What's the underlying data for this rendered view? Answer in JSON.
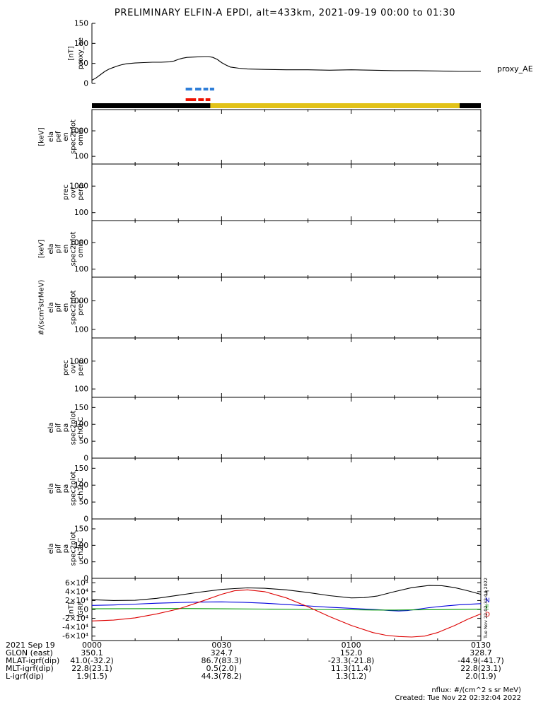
{
  "title": "PRELIMINARY ELFIN-A EPDI, alt=433km, 2021-09-19 00:00 to 01:30",
  "colors": {
    "frame": "#000000",
    "line_black": "#000000",
    "line_blue": "#0000dd",
    "line_green": "#009900",
    "line_red": "#dd0000",
    "orbit_black": "#000000",
    "orbit_yellow": "#e2c218",
    "dash_blue": "#2f7ed8",
    "dash_red": "#ee1100"
  },
  "xaxis": {
    "tick_minutes": [
      0,
      30,
      60,
      90
    ],
    "minor_every_min": 10
  },
  "chart_data": [
    {
      "id": "proxy_ae",
      "type": "line",
      "scale": "linear",
      "ylabel_lines": [
        "proxy_ae"
      ],
      "yunits": "[nT]",
      "right_label": "proxy_AE",
      "ylim": [
        0,
        150
      ],
      "yticks": [
        0,
        50,
        100,
        150
      ],
      "series": [
        {
          "name": "proxy_AE",
          "color_key": "line_black",
          "x": [
            0,
            1,
            2,
            3,
            4,
            5,
            6,
            7,
            8,
            10,
            12,
            14,
            16,
            18,
            19,
            20,
            21,
            22,
            24,
            26,
            27,
            28,
            29,
            30,
            31,
            32,
            34,
            36,
            40,
            45,
            50,
            55,
            60,
            65,
            70,
            75,
            80,
            85,
            90
          ],
          "y": [
            8,
            14,
            22,
            30,
            36,
            40,
            44,
            47,
            49,
            51,
            52,
            53,
            53,
            54,
            56,
            60,
            63,
            65,
            66,
            67,
            67,
            65,
            60,
            52,
            46,
            41,
            38,
            36,
            35,
            34,
            34,
            33,
            34,
            33,
            32,
            32,
            31,
            30,
            30
          ]
        }
      ]
    },
    {
      "id": "ela_pef_en_spec2plot_omni",
      "type": "spectrogram",
      "scale": "log",
      "ylabel_lines": [
        "ela",
        "pef",
        "en",
        "spec2plot",
        "omni"
      ],
      "yunits": "[keV]",
      "ylim": [
        50,
        6800
      ],
      "yticks": [
        100,
        1000
      ],
      "series": []
    },
    {
      "id": "pef_prec_ovr_perp",
      "type": "spectrogram",
      "scale": "log",
      "ylabel_lines": [
        "prec",
        "ovr",
        "perp"
      ],
      "yunits": "",
      "ylim": [
        50,
        6800
      ],
      "yticks": [
        100,
        1000
      ],
      "series": []
    },
    {
      "id": "ela_pif_en_spec2plot_omni",
      "type": "spectrogram",
      "scale": "log",
      "ylabel_lines": [
        "ela",
        "pif",
        "en",
        "spec2plot",
        "omni"
      ],
      "yunits": "[keV]",
      "ylim": [
        50,
        6800
      ],
      "yticks": [
        100,
        1000
      ],
      "series": []
    },
    {
      "id": "ela_pif_en_spec2plot_prec",
      "type": "spectrogram",
      "scale": "log",
      "ylabel_lines": [
        "ela",
        "pif",
        "en",
        "spec2plot",
        "prec"
      ],
      "yunits": "#/(scm²strMeV)",
      "ylim": [
        50,
        6800
      ],
      "yticks": [
        100,
        1000
      ],
      "series": []
    },
    {
      "id": "pif_prec_ovr_perp",
      "type": "spectrogram",
      "scale": "log",
      "ylabel_lines": [
        "prec",
        "ovr",
        "perp"
      ],
      "yunits": "",
      "ylim": [
        50,
        6800
      ],
      "yticks": [
        100,
        1000
      ],
      "series": []
    },
    {
      "id": "ela_pif_pa_spec2plot_ch0LC",
      "type": "line",
      "scale": "linear",
      "ylabel_lines": [
        "ela",
        "pif",
        "pa",
        "spec2plot",
        "ch0LC"
      ],
      "yunits": "",
      "ylim": [
        0,
        180
      ],
      "yticks": [
        0,
        50,
        100,
        150
      ],
      "series": []
    },
    {
      "id": "ela_pif_pa_spec2plot_ch1LC",
      "type": "line",
      "scale": "linear",
      "ylabel_lines": [
        "ela",
        "pif",
        "pa",
        "spec2plot",
        "ch1LC"
      ],
      "yunits": "",
      "ylim": [
        0,
        180
      ],
      "yticks": [
        0,
        50,
        100,
        150
      ],
      "series": []
    },
    {
      "id": "ela_pif_pa_spec2plot_ch2LC",
      "type": "line",
      "scale": "linear",
      "ylabel_lines": [
        "ela",
        "pif",
        "pa",
        "spec2plot",
        "ch2LC"
      ],
      "yunits": "",
      "ylim": [
        0,
        180
      ],
      "yticks": [
        0,
        50,
        100,
        150
      ],
      "series": []
    },
    {
      "id": "igrf",
      "type": "line",
      "scale": "linear",
      "ylabel_lines": [
        "IGRF"
      ],
      "yunits": "[nT]",
      "ylim": [
        -70000,
        70000
      ],
      "yticks": [
        -60000,
        -40000,
        -20000,
        0,
        20000,
        40000,
        60000
      ],
      "ytick_labels": [
        "-6×10⁴",
        "-4×10⁴",
        "-2×10⁴",
        "0",
        "2×10⁴",
        "4×10⁴",
        "6×10⁴"
      ],
      "right_letters": [
        {
          "label": "T",
          "color_key": "line_black"
        },
        {
          "label": "N",
          "color_key": "line_blue"
        },
        {
          "label": "E",
          "color_key": "line_green"
        },
        {
          "label": "D",
          "color_key": "line_red"
        }
      ],
      "series": [
        {
          "name": "igrf_T",
          "color_key": "line_black",
          "x": [
            0,
            5,
            10,
            15,
            20,
            25,
            30,
            33,
            36,
            40,
            45,
            50,
            55,
            60,
            63,
            66,
            70,
            74,
            78,
            81,
            84,
            87,
            90
          ],
          "y": [
            22000,
            20000,
            20500,
            25000,
            32000,
            39000,
            45000,
            47000,
            48500,
            47500,
            44000,
            38000,
            31000,
            26000,
            26500,
            30000,
            40000,
            49000,
            54000,
            53500,
            49000,
            42000,
            34000
          ]
        },
        {
          "name": "igrf_N",
          "color_key": "line_blue",
          "x": [
            0,
            5,
            10,
            15,
            20,
            25,
            30,
            35,
            40,
            45,
            50,
            55,
            60,
            63,
            66,
            69,
            71,
            73,
            75,
            78,
            81,
            85,
            90
          ],
          "y": [
            9000,
            10000,
            12000,
            14000,
            15500,
            16500,
            17000,
            16000,
            14000,
            11000,
            8000,
            5000,
            2500,
            1000,
            -500,
            -2500,
            -3500,
            -2500,
            0,
            4000,
            7000,
            10500,
            13000
          ]
        },
        {
          "name": "igrf_E",
          "color_key": "line_green",
          "x": [
            0,
            10,
            20,
            30,
            40,
            50,
            60,
            65,
            70,
            75,
            80,
            85,
            90
          ],
          "y": [
            1500,
            1800,
            2000,
            1500,
            800,
            0,
            -800,
            -1200,
            -1500,
            -1000,
            -400,
            200,
            600
          ]
        },
        {
          "name": "igrf_D",
          "color_key": "line_red",
          "x": [
            0,
            5,
            10,
            15,
            20,
            25,
            30,
            33,
            36,
            40,
            45,
            50,
            55,
            60,
            65,
            68,
            71,
            74,
            77,
            80,
            84,
            87,
            90
          ],
          "y": [
            -26000,
            -24000,
            -19000,
            -10000,
            1000,
            17000,
            34000,
            42000,
            44000,
            40000,
            26000,
            6000,
            -16000,
            -36000,
            -52000,
            -58000,
            -61000,
            -62000,
            -60000,
            -52000,
            -36000,
            -22000,
            -10000
          ]
        }
      ]
    }
  ],
  "status_bars": {
    "dash_rows": [
      {
        "name": "quality-dashes-blue",
        "color_key": "dash_blue",
        "segments_min": [
          [
            21.7,
            23.2
          ],
          [
            23.9,
            25.3
          ],
          [
            25.8,
            26.9
          ],
          [
            27.3,
            28.3
          ]
        ]
      },
      {
        "name": "quality-dashes-red",
        "color_key": "dash_red",
        "segments_min": [
          [
            21.7,
            24.1
          ],
          [
            24.6,
            25.9
          ],
          [
            26.3,
            27.4
          ]
        ]
      }
    ],
    "orbit_segments": [
      {
        "color_key": "orbit_black",
        "range_min": [
          0,
          27.4
        ]
      },
      {
        "color_key": "orbit_yellow",
        "range_min": [
          27.4,
          85.1
        ]
      },
      {
        "color_key": "orbit_black",
        "range_min": [
          85.1,
          90
        ]
      }
    ]
  },
  "footer": {
    "rows": [
      {
        "label": "2021 Sep 19",
        "values": [
          "0000",
          "0030",
          "0100",
          "0130"
        ]
      },
      {
        "label": "GLON (east)",
        "values": [
          "350.1",
          "324.7",
          "152.0",
          "328.7"
        ]
      },
      {
        "label": "MLAT-igrf(dip)",
        "values": [
          "41.0(-32.2)",
          "86.7(83.3)",
          "-23.3(-21.8)",
          "-44.9(-41.7)"
        ]
      },
      {
        "label": "MLT-igrf(dip)",
        "values": [
          "22.8(23.1)",
          "0.5(2.0)",
          "11.3(11.4)",
          "22.8(23.1)"
        ]
      },
      {
        "label": "L-igrf(dip)",
        "values": [
          "1.9(1.5)",
          "44.3(78.2)",
          "1.3(1.2)",
          "2.0(1.9)"
        ]
      }
    ]
  },
  "notes": {
    "nflux": "nflux: #/(cm^2 s sr MeV)",
    "created": "Created: Tue Nov 22 02:32:04 2022",
    "side_timestamp": "Tue Nov 22 02:32:04 2022"
  }
}
